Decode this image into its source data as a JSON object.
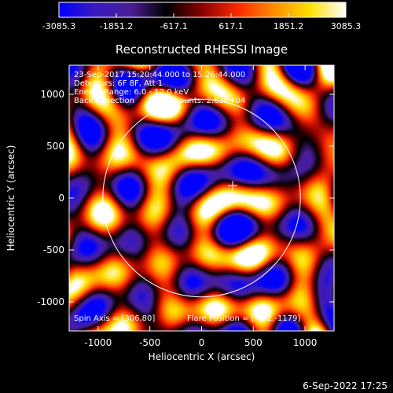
{
  "chart_data": {
    "type": "heatmap",
    "title": "Reconstructed RHESSI Image",
    "xlabel": "Heliocentric X (arcsec)",
    "ylabel": "Heliocentric Y (arcsec)",
    "xlim": [
      -1280,
      1280
    ],
    "ylim": [
      -1280,
      1280
    ],
    "x_ticks": [
      -1000,
      -500,
      0,
      500,
      1000
    ],
    "y_ticks": [
      -1000,
      -500,
      0,
      500,
      1000
    ],
    "colorbar": {
      "range": [
        -3085.3,
        3085.3
      ],
      "tick_values": [
        -3085.3,
        -1851.2,
        -617.1,
        617.1,
        1851.2,
        3085.3
      ],
      "tick_labels": [
        "-3085.3",
        "-1851.2",
        "-617.1",
        "617.1",
        "1851.2",
        "3085.3"
      ],
      "colors": [
        "#0000ff",
        "#3a1ac0",
        "#4b1e96",
        "#000000",
        "#8a0000",
        "#ff2a00",
        "#ff8c00",
        "#ffe000",
        "#ffffff"
      ]
    },
    "annotations": [
      "23-Sep-2017 15:20:44.000 to 15:26:44.000",
      "Detectors: 6F 8F, Att 1",
      "Energy Range: 6.0 - 12.0 keV",
      "Back Projection",
      "Total counts: 2.63E+04",
      "Spin Axis = [306,80]",
      "Flare Position = [-472,-1179]"
    ],
    "solar_disk": {
      "center": [
        0,
        0
      ],
      "radius_arcsec": 955
    },
    "flare_marker": [
      300,
      120
    ],
    "footer": "6-Sep-2022 17:25"
  }
}
